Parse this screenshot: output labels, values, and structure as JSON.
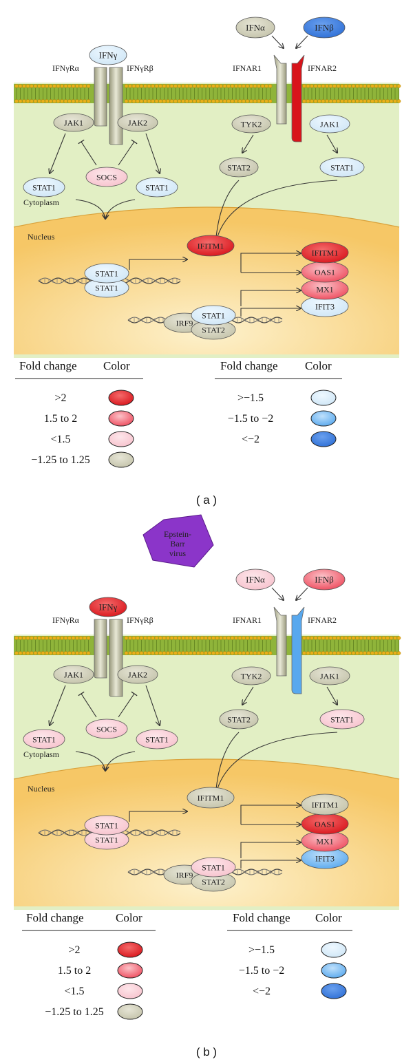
{
  "panels": [
    {
      "caption": "( a )",
      "virus": "",
      "receptors": {
        "ifng": "IFNγ",
        "ifng_r_alpha": "IFNγRα",
        "ifng_r_beta": "IFNγRβ",
        "ifna": "IFNα",
        "ifnb": "IFNβ",
        "ifnar1": "IFNAR1",
        "ifnar2": "IFNAR2"
      },
      "cytoplasm_label": "Cytoplasm",
      "nucleus_label": "Nucleus",
      "nodes": {
        "ifng": {
          "label": "IFNγ",
          "level": "gt_-1.5"
        },
        "ifna": {
          "label": "IFNα",
          "level": "-1.25_to_1.25"
        },
        "ifnb": {
          "label": "IFNβ",
          "level": "lt_-2"
        },
        "ifnar2_color": {
          "level": "gt_2"
        },
        "jak1_left": {
          "label": "JAK1",
          "level": "-1.25_to_1.25"
        },
        "jak2": {
          "label": "JAK2",
          "level": "-1.25_to_1.25"
        },
        "socs": {
          "label": "SOCS",
          "level": "lt_1.5"
        },
        "stat1_left": {
          "label": "STAT1",
          "level": "gt_-1.5"
        },
        "stat1_mid": {
          "label": "STAT1",
          "level": "gt_-1.5"
        },
        "tyk2": {
          "label": "TYK2",
          "level": "-1.25_to_1.25"
        },
        "jak1_right": {
          "label": "JAK1",
          "level": "gt_-1.5"
        },
        "stat2_cyto": {
          "label": "STAT2",
          "level": "-1.25_to_1.25"
        },
        "stat1_right": {
          "label": "STAT1",
          "level": "gt_-1.5"
        },
        "stat1_dimer_top": {
          "label": "STAT1",
          "level": "gt_-1.5"
        },
        "stat1_dimer_bot": {
          "label": "STAT1",
          "level": "gt_-1.5"
        },
        "ifitm1_single": {
          "label": "IFITM1",
          "level": "gt_2"
        },
        "irf9": {
          "label": "IRF9",
          "level": "-1.25_to_1.25"
        },
        "isgf3_stat1": {
          "label": "STAT1",
          "level": "gt_-1.5"
        },
        "isgf3_stat2": {
          "label": "STAT2",
          "level": "-1.25_to_1.25"
        },
        "ifitm1": {
          "label": "IFITM1",
          "level": "gt_2"
        },
        "oas1": {
          "label": "OAS1",
          "level": "1.5_to_2"
        },
        "mx1": {
          "label": "MX1",
          "level": "1.5_to_2"
        },
        "ifit3": {
          "label": "IFIT3",
          "level": "gt_-1.5"
        }
      }
    },
    {
      "caption": "( b )",
      "virus": "Epstein-\nBarr\nvirus",
      "receptors": {
        "ifng": "IFNγ",
        "ifng_r_alpha": "IFNγRα",
        "ifng_r_beta": "IFNγRβ",
        "ifna": "IFNα",
        "ifnb": "IFNβ",
        "ifnar1": "IFNAR1",
        "ifnar2": "IFNAR2"
      },
      "cytoplasm_label": "Cytoplasm",
      "nucleus_label": "Nucleus",
      "nodes": {
        "ifng": {
          "label": "IFNγ",
          "level": "gt_2"
        },
        "ifna": {
          "label": "IFNα",
          "level": "lt_1.5"
        },
        "ifnb": {
          "label": "IFNβ",
          "level": "1.5_to_2"
        },
        "ifnar2_color": {
          "level": "-1.5_to_-2"
        },
        "jak1_left": {
          "label": "JAK1",
          "level": "-1.25_to_1.25"
        },
        "jak2": {
          "label": "JAK2",
          "level": "-1.25_to_1.25"
        },
        "socs": {
          "label": "SOCS",
          "level": "lt_1.5"
        },
        "stat1_left": {
          "label": "STAT1",
          "level": "lt_1.5"
        },
        "stat1_mid": {
          "label": "STAT1",
          "level": "lt_1.5"
        },
        "tyk2": {
          "label": "TYK2",
          "level": "-1.25_to_1.25"
        },
        "jak1_right": {
          "label": "JAK1",
          "level": "-1.25_to_1.25"
        },
        "stat2_cyto": {
          "label": "STAT2",
          "level": "-1.25_to_1.25"
        },
        "stat1_right": {
          "label": "STAT1",
          "level": "lt_1.5"
        },
        "stat1_dimer_top": {
          "label": "STAT1",
          "level": "lt_1.5"
        },
        "stat1_dimer_bot": {
          "label": "STAT1",
          "level": "lt_1.5"
        },
        "ifitm1_single": {
          "label": "IFITM1",
          "level": "-1.25_to_1.25"
        },
        "irf9": {
          "label": "IRF9",
          "level": "-1.25_to_1.25"
        },
        "isgf3_stat1": {
          "label": "STAT1",
          "level": "lt_1.5"
        },
        "isgf3_stat2": {
          "label": "STAT2",
          "level": "-1.25_to_1.25"
        },
        "ifitm1": {
          "label": "IFITM1",
          "level": "-1.25_to_1.25"
        },
        "oas1": {
          "label": "OAS1",
          "level": "gt_2"
        },
        "mx1": {
          "label": "MX1",
          "level": "1.5_to_2"
        },
        "ifit3": {
          "label": "IFIT3",
          "level": "-1.5_to_-2"
        }
      }
    }
  ],
  "legend": {
    "header_fold": "Fold change",
    "header_color": "Color",
    "up": [
      {
        "key": "gt_2",
        "label": ">2"
      },
      {
        "key": "1.5_to_2",
        "label": "1.5 to 2"
      },
      {
        "key": "lt_1.5",
        "label": "<1.5"
      },
      {
        "key": "-1.25_to_1.25",
        "label": "−1.25 to 1.25"
      }
    ],
    "down": [
      {
        "key": "gt_-1.5",
        "label": ">−1.5"
      },
      {
        "key": "-1.5_to_-2",
        "label": "−1.5 to −2"
      },
      {
        "key": "lt_-2",
        "label": "<−2"
      }
    ]
  },
  "colors": {
    "gt_2": {
      "fill": "#d8141b",
      "light": "#f46a6a"
    },
    "1.5_to_2": {
      "fill": "#ee4a5c",
      "light": "#fbc2c8"
    },
    "lt_1.5": {
      "fill": "#f7c2cd",
      "light": "#fde6ea"
    },
    "-1.25_to_1.25": {
      "fill": "#c4c3aa",
      "light": "#e6e5d6"
    },
    "gt_-1.5": {
      "fill": "#cfe6f6",
      "light": "#eef8ff"
    },
    "-1.5_to_-2": {
      "fill": "#58a8ee",
      "light": "#bfe0fb"
    },
    "lt_-2": {
      "fill": "#2e6fd6",
      "light": "#6aa0ee"
    },
    "membrane": "#8fb43a",
    "membrane_bead": "#e8b01a",
    "cytoplasm": "#e2efc4",
    "nucleus": "#f6c766"
  }
}
